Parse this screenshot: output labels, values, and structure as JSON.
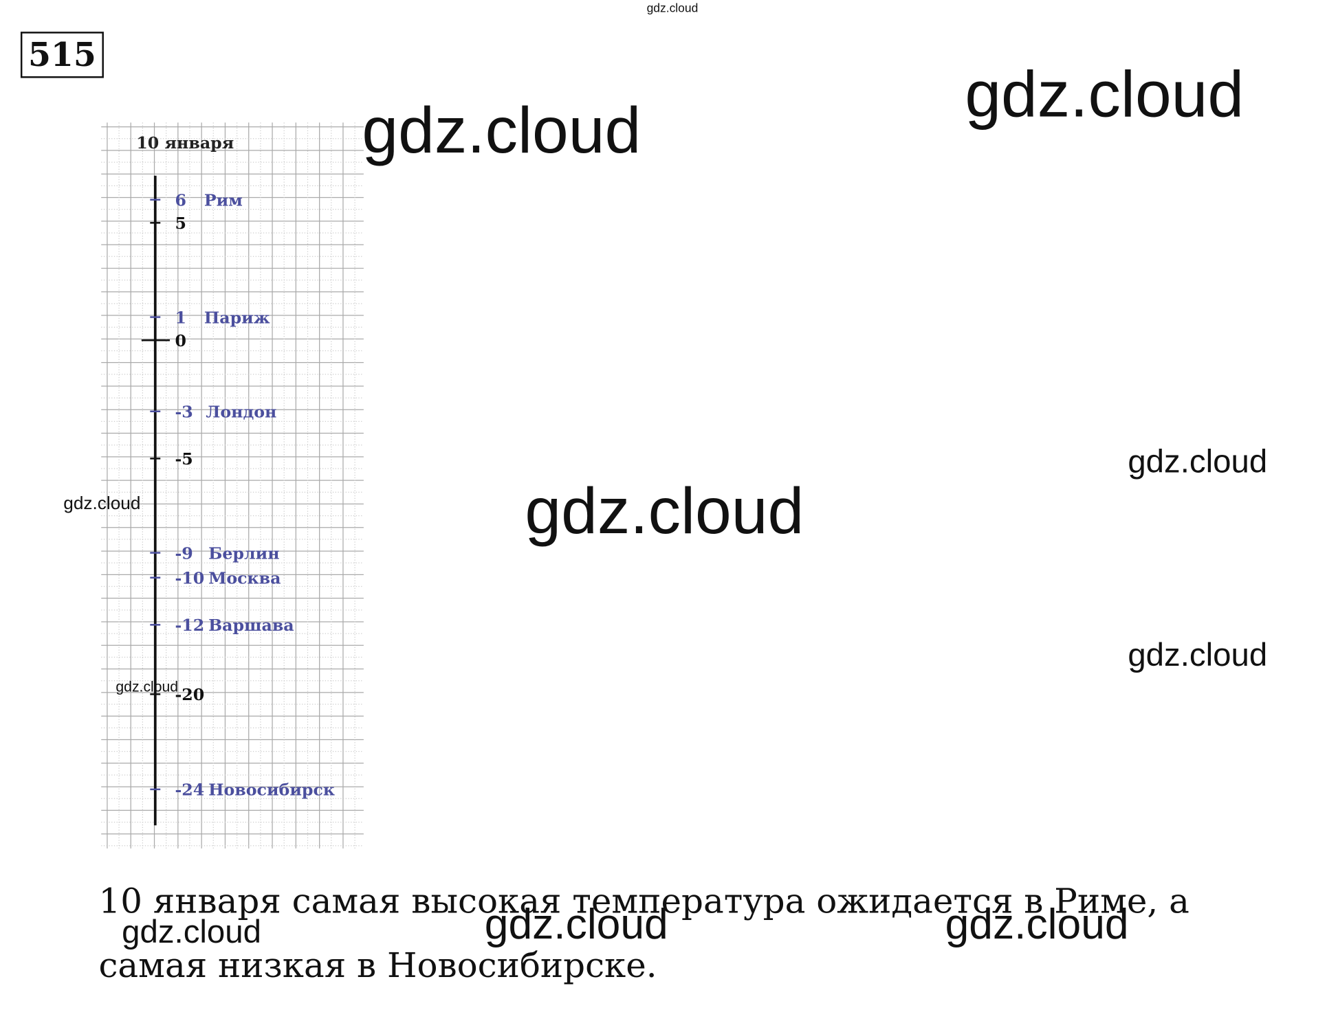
{
  "problem_number": "515",
  "diagram": {
    "title": "10 января",
    "points": [
      {
        "value": 6,
        "label": "Рим"
      },
      {
        "value": 1,
        "label": "Париж"
      },
      {
        "value": -3,
        "label": "Лондон"
      },
      {
        "value": -9,
        "label": "Берлин"
      },
      {
        "value": -10,
        "label": "Москва"
      },
      {
        "value": -12,
        "label": "Варшава"
      },
      {
        "value": -24,
        "label": "Новосибирск"
      }
    ],
    "ticks": [
      5,
      0,
      -5,
      -20
    ]
  },
  "answer": "10 января самая высокая температура ожидается в Риме, а самая низкая в Новосибирске.",
  "watermarks": [
    "gdz.cloud",
    "gdz.cloud",
    "gdz.cloud",
    "gdz.cloud",
    "gdz.cloud",
    "gdz.cloud",
    "gdz.cloud",
    "gdz.cloud",
    "gdz.cloud",
    "gdz.cloud",
    "gdz.cloud"
  ]
}
